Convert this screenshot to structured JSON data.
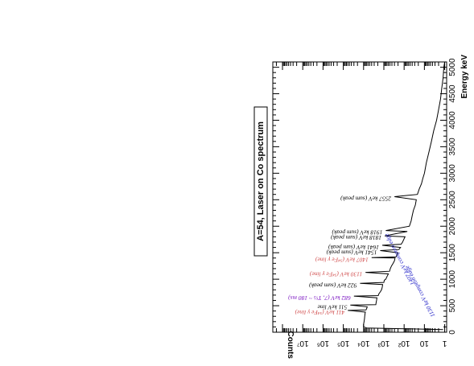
{
  "chart_data": {
    "type": "line",
    "title": "A=54, Laser on Co spectrum",
    "xlabel": "Energy keV",
    "ylabel": "Counts",
    "xlim": [
      0,
      5100
    ],
    "ylim": [
      0.8,
      300000000
    ],
    "ylog": true,
    "grid": false,
    "x_ticks": [
      0,
      500,
      1000,
      1500,
      2000,
      2500,
      3000,
      3500,
      4000,
      4500,
      5000
    ],
    "y_ticks": [
      {
        "value": 1,
        "label": "1"
      },
      {
        "value": 10,
        "label": "10"
      },
      {
        "value": 100,
        "label": "10²"
      },
      {
        "value": 1000,
        "label": "10³"
      },
      {
        "value": 10000,
        "label": "10⁴"
      },
      {
        "value": 100000,
        "label": "10⁵"
      },
      {
        "value": 1000000,
        "label": "10⁶"
      },
      {
        "value": 10000000,
        "label": "10⁷"
      }
    ],
    "series": [
      {
        "x": [
          50,
          80,
          100,
          150,
          200,
          250,
          300,
          350,
          380,
          411,
          420,
          450,
          480,
          511,
          520,
          560,
          600,
          650,
          682,
          690,
          720,
          760,
          800,
          850,
          900,
          922,
          940,
          980,
          1000,
          1050,
          1100,
          1130,
          1150,
          1200,
          1250,
          1300,
          1350,
          1400,
          1407,
          1420,
          1500,
          1541,
          1560,
          1600,
          1641,
          1660,
          1700,
          1800,
          1818,
          1900,
          1918,
          2000,
          2100,
          2200,
          2300,
          2400,
          2500,
          2557,
          2600,
          2700,
          2800,
          2900,
          3000,
          3200,
          3400,
          3600,
          3800,
          4000,
          4200,
          4400,
          4600,
          4800,
          5000,
          5100
        ],
        "y": [
          1.2,
          7000,
          10000,
          10000,
          9500,
          9000,
          8800,
          8500,
          8200,
          60000,
          7600,
          7000,
          6600,
          45000,
          2500,
          2400,
          2300,
          2200,
          30000,
          1900,
          1800,
          1500,
          1300,
          1200,
          1150,
          15000,
          1000,
          950,
          800,
          700,
          600,
          8000,
          520,
          480,
          420,
          350,
          300,
          280,
          4000,
          250,
          200,
          1500,
          180,
          150,
          1200,
          140,
          120,
          90,
          900,
          70,
          800,
          55,
          45,
          40,
          35,
          28,
          25,
          300,
          22,
          18,
          14,
          12,
          10,
          8,
          6,
          4.5,
          3.5,
          2.5,
          2,
          1.6,
          1.4,
          1.2,
          1.1,
          1
        ]
      }
    ],
    "annotations": [
      {
        "energy": 411,
        "counts": 60000,
        "text": "411 keV (⁵⁴Fe γ line)",
        "color": "#d04a4a"
      },
      {
        "energy": 511,
        "counts": 45000,
        "text": "511 keV line",
        "color": "#000000"
      },
      {
        "energy": 682,
        "counts": 30000,
        "text": "682 keV (7, T½ ~ 180 ms)",
        "color": "#7a14c2"
      },
      {
        "energy": 922,
        "counts": 15000,
        "text": "922 keV (sum peak)",
        "color": "#000000"
      },
      {
        "energy": 1130,
        "counts": 8000,
        "text": "1130 keV (⁵⁴Fe γ line)",
        "color": "#d04a4a"
      },
      {
        "energy": 1407,
        "counts": 4000,
        "text": "1407 keV (⁵⁴Fe γ line)",
        "color": "#d04a4a"
      },
      {
        "energy": 1541,
        "counts": 1500,
        "text": "1541 keV (sum peak)",
        "color": "#000000"
      },
      {
        "energy": 1641,
        "counts": 1200,
        "text": "1641 keV (sum peak)",
        "color": "#000000"
      },
      {
        "energy": 1818,
        "counts": 900,
        "text": "1818 keV (sum peak)",
        "color": "#000000"
      },
      {
        "energy": 1918,
        "counts": 800,
        "text": "1918 keV (sum peak)",
        "color": "#000000"
      },
      {
        "energy": 2557,
        "counts": 300,
        "text": "2557 keV (sum peak)",
        "color": "#000000"
      }
    ],
    "compton_labels": [
      {
        "text": "1130 keV compton edge",
        "color": "#2424c8",
        "energy": 310,
        "counts": 3
      },
      {
        "text": "1407 keV compton edge",
        "color": "#2424c8",
        "energy": 910,
        "counts": 30
      }
    ]
  }
}
